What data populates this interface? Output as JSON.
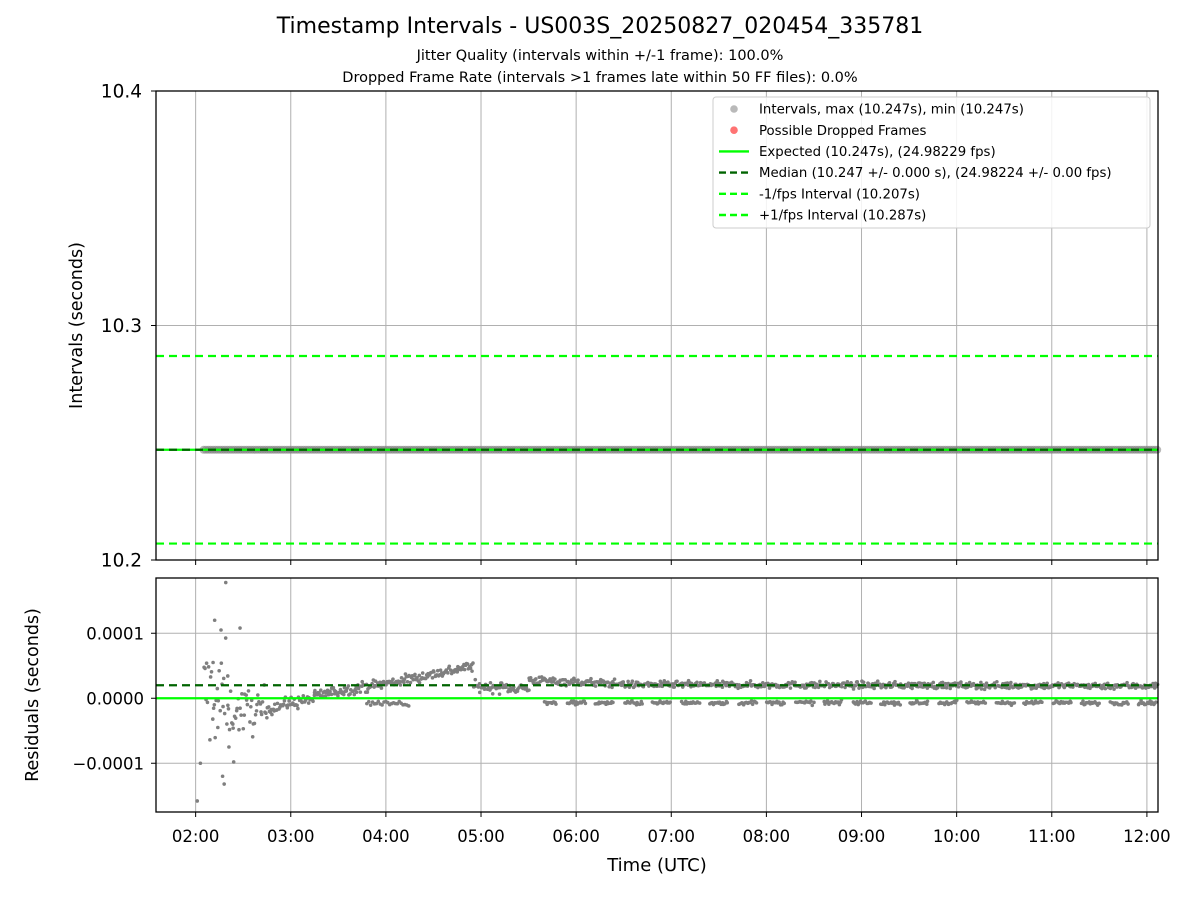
{
  "title": "Timestamp Intervals - US003S_20250827_020454_335781",
  "subtitle_1": "Jitter Quality (intervals within +/-1 frame): 100.0%",
  "subtitle_2": "Dropped Frame Rate (intervals >1 frames late within 50 FF files): 0.0%",
  "colors": {
    "points": "#7f7f7f",
    "dropped": "#ff0000",
    "expected": "#00ff00",
    "median": "#006400",
    "bounds": "#00ff00",
    "grid": "#b0b0b0"
  },
  "chart_data": [
    {
      "type": "scatter",
      "ylabel": "Intervals (seconds)",
      "ylim": [
        10.2,
        10.4
      ],
      "yticks": [
        "10.2",
        "10.3",
        "10.4"
      ],
      "xlim": [
        "01:35",
        "12:07"
      ],
      "grid": true,
      "legend_placement": "top-right",
      "series": [
        {
          "name": "Intervals, max (10.247s), min (10.247s)",
          "kind": "points",
          "x_start": "02:05",
          "x_end": "12:07",
          "y": 10.247
        },
        {
          "name": "Possible Dropped Frames",
          "kind": "points",
          "x": [],
          "y": []
        },
        {
          "name": "Expected (10.247s), (24.98229 fps)",
          "kind": "hline",
          "y": 10.247
        },
        {
          "name": "Median (10.247 +/- 0.000 s), (24.98224 +/- 0.00 fps)",
          "kind": "hline-dashed",
          "y": 10.247
        },
        {
          "name": "-1/fps Interval (10.207s)",
          "kind": "hline-dashed",
          "y": 10.207
        },
        {
          "name": "+1/fps Interval (10.287s)",
          "kind": "hline-dashed",
          "y": 10.287
        }
      ]
    },
    {
      "type": "scatter",
      "xlabel": "Time (UTC)",
      "ylabel": "Residuals (seconds)",
      "ylim": [
        -0.000175,
        0.000185
      ],
      "yticks": [
        -0.0001,
        0.0,
        0.0001
      ],
      "ytick_labels": [
        "−0.0001",
        "0.0000",
        "0.0001"
      ],
      "xlim": [
        "01:35",
        "12:07"
      ],
      "xticks": [
        "02:00",
        "03:00",
        "04:00",
        "05:00",
        "06:00",
        "07:00",
        "08:00",
        "09:00",
        "10:00",
        "11:00",
        "12:00"
      ],
      "grid": true,
      "reference_lines": [
        {
          "kind": "hline",
          "y": 0.0
        },
        {
          "kind": "hline-dashed",
          "y": 2e-05
        }
      ],
      "trend_segments": [
        {
          "x": [
            "02:05",
            "02:20"
          ],
          "y": [
            5e-06,
            0.0
          ],
          "spread": 8e-05
        },
        {
          "x": [
            "02:20",
            "02:45"
          ],
          "y": [
            -2e-05,
            -2e-05
          ],
          "spread": 3.5e-05
        },
        {
          "x": [
            "02:45",
            "03:15"
          ],
          "y": [
            -1.5e-05,
            0.0
          ],
          "spread": 1e-05
        },
        {
          "x": [
            "03:15",
            "04:05"
          ],
          "y": [
            5e-06,
            2.5e-05
          ],
          "spread": 8e-06
        },
        {
          "x": [
            "04:05",
            "04:55"
          ],
          "y": [
            2.5e-05,
            5e-05
          ],
          "spread": 8e-06
        },
        {
          "x": [
            "04:55",
            "05:30"
          ],
          "y": [
            1.8e-05,
            1.5e-05
          ],
          "spread": 8e-06
        },
        {
          "x": [
            "05:30",
            "06:30"
          ],
          "y": [
            2.8e-05,
            2.2e-05
          ],
          "spread": 6e-06
        },
        {
          "x": [
            "06:30",
            "12:07"
          ],
          "y": [
            2.1e-05,
            1.9e-05
          ],
          "spread": 5e-06
        }
      ],
      "lower_band": {
        "x": [
          "05:40",
          "12:07"
        ],
        "y": -7e-06
      },
      "outliers": [
        {
          "x": "02:01",
          "y": -0.000158
        },
        {
          "x": "02:03",
          "y": -0.0001
        },
        {
          "x": "02:12",
          "y": 0.00012
        },
        {
          "x": "02:16",
          "y": 0.000105
        },
        {
          "x": "02:17",
          "y": -0.00012
        },
        {
          "x": "02:18",
          "y": -0.000132
        },
        {
          "x": "02:19",
          "y": 0.000178
        },
        {
          "x": "02:21",
          "y": -7.5e-05
        },
        {
          "x": "02:24",
          "y": -9.8e-05
        },
        {
          "x": "02:28",
          "y": 0.000108
        },
        {
          "x": "02:11",
          "y": 5.5e-05
        },
        {
          "x": "02:14",
          "y": -4.5e-05
        }
      ]
    }
  ]
}
